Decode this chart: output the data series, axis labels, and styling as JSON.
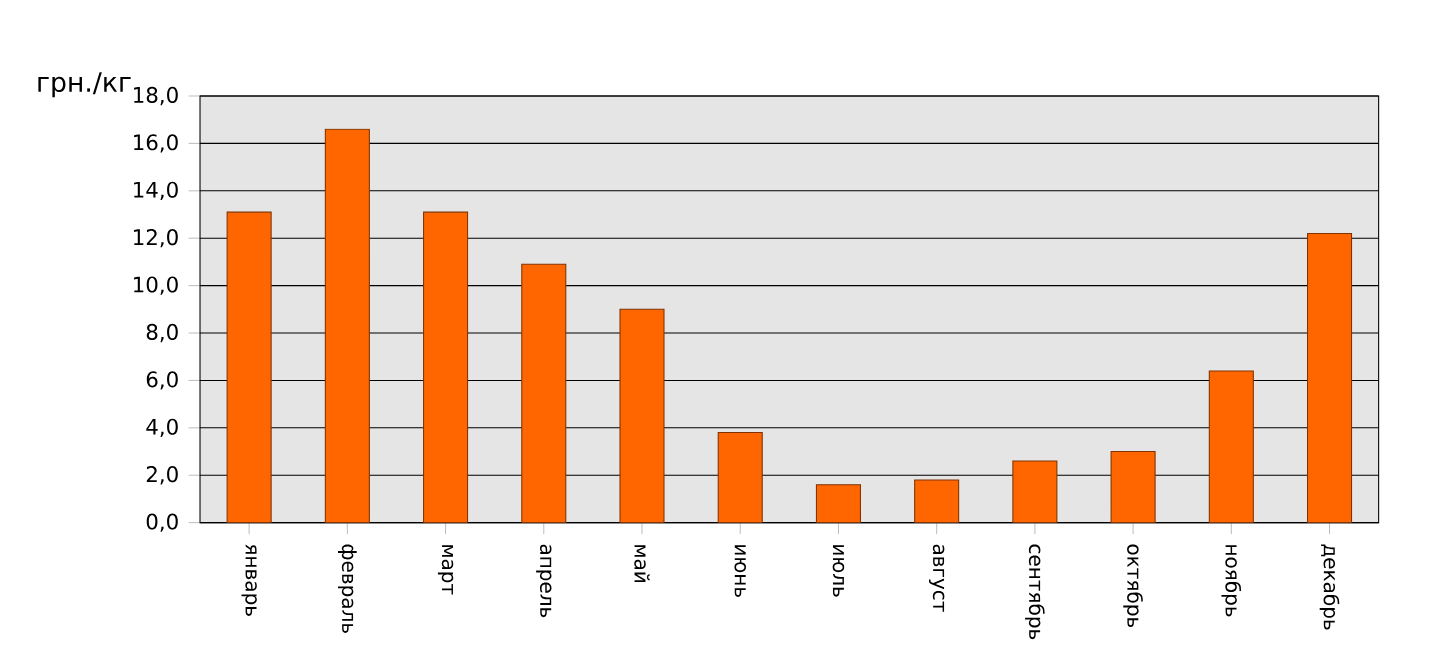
{
  "chart_data": {
    "type": "bar",
    "ylabel": "грн./кг",
    "categories": [
      "январь",
      "февраль",
      "март",
      "апрель",
      "май",
      "июнь",
      "июль",
      "август",
      "сентябрь",
      "октябрь",
      "ноябрь",
      "декабрь"
    ],
    "values": [
      13.1,
      16.6,
      13.1,
      10.9,
      9.0,
      3.8,
      1.6,
      1.8,
      2.6,
      3.0,
      6.4,
      12.2
    ],
    "color": "#ff6600",
    "ylim": [
      0,
      18
    ],
    "yticks": [
      {
        "value": 0,
        "label": "0,0"
      },
      {
        "value": 2,
        "label": "2,0"
      },
      {
        "value": 4,
        "label": "4,0"
      },
      {
        "value": 6,
        "label": "6,0"
      },
      {
        "value": 8,
        "label": "8,0"
      },
      {
        "value": 10,
        "label": "10,0"
      },
      {
        "value": 12,
        "label": "12,0"
      },
      {
        "value": 14,
        "label": "14,0"
      },
      {
        "value": 16,
        "label": "16,0"
      },
      {
        "value": 18,
        "label": "18,0"
      }
    ],
    "grid": "y"
  }
}
